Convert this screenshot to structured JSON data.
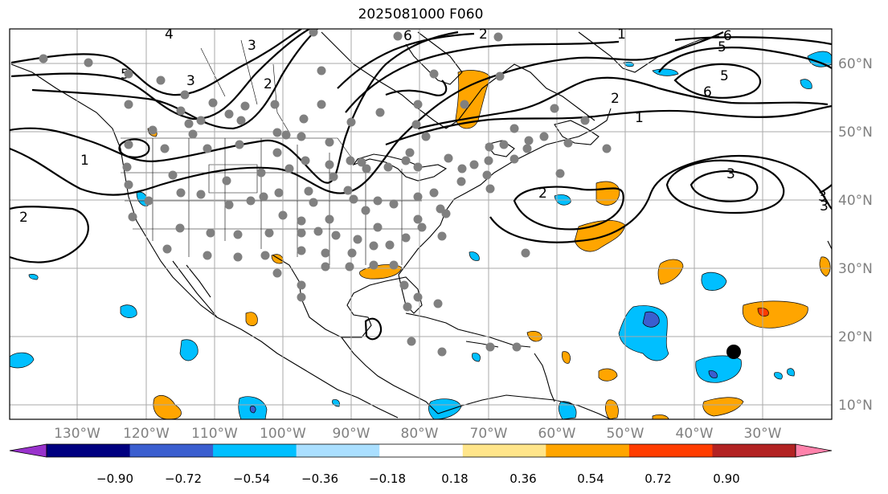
{
  "title": "2025081000 F060",
  "lon_labels": [
    "130°W",
    "120°W",
    "110°W",
    "100°W",
    "90°W",
    "80°W",
    "70°W",
    "60°W",
    "50°W",
    "40°W",
    "30°W"
  ],
  "lat_labels": [
    "60°N",
    "50°N",
    "40°N",
    "30°N",
    "20°N",
    "10°N"
  ],
  "contour_labels": [
    "5",
    "4",
    "3",
    "3",
    "2",
    "1",
    "2",
    "5",
    "5",
    "6",
    "6",
    "2",
    "1",
    "3",
    "3",
    "3",
    "2",
    "6",
    "1",
    "2"
  ],
  "colorbar": {
    "ticks": [
      "−0.90",
      "−0.72",
      "−0.54",
      "−0.36",
      "−0.18",
      "0.18",
      "0.36",
      "0.54",
      "0.72",
      "0.90"
    ],
    "colors": [
      "#9932cc",
      "#000080",
      "#3a5ecf",
      "#00bfff",
      "#aadfff",
      "#ffffff",
      "#ffe58a",
      "#ffa500",
      "#ff3c00",
      "#b22222",
      "#ff82ab"
    ]
  },
  "colors": {
    "positive_light": "#ffe58a",
    "positive_mid": "#ffa500",
    "positive_strong": "#ff3c00",
    "negative_light": "#aadfff",
    "negative_mid": "#00bfff",
    "negative_strong": "#3a5ecf",
    "station_dot": "#808080",
    "marker": "#000000",
    "grid": "#aaaaaa"
  }
}
